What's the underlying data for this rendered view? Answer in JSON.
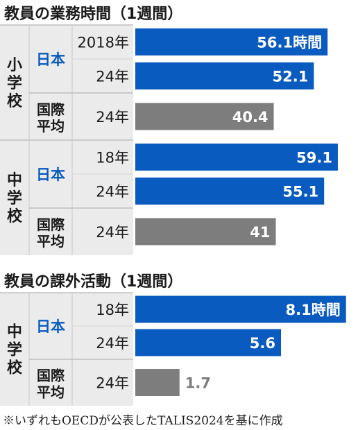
{
  "chart_data": [
    {
      "type": "bar",
      "title": "教員の業務時間（1週間）",
      "unit_label": "時間",
      "groups": [
        {
          "school": "小学校",
          "rows": [
            {
              "country": "日本",
              "year": "2018年",
              "value": 56.1,
              "label": "56.1時間",
              "color": "#0a5bbf"
            },
            {
              "country": "",
              "year": "24年",
              "value": 52.1,
              "label": "52.1",
              "color": "#0a5bbf"
            },
            {
              "country": "国際平均",
              "year": "24年",
              "value": 40.4,
              "label": "40.4",
              "color": "#7d7d7d"
            }
          ]
        },
        {
          "school": "中学校",
          "rows": [
            {
              "country": "日本",
              "year": "18年",
              "value": 59.1,
              "label": "59.1",
              "color": "#0a5bbf"
            },
            {
              "country": "",
              "year": "24年",
              "value": 55.1,
              "label": "55.1",
              "color": "#0a5bbf"
            },
            {
              "country": "国際平均",
              "year": "24年",
              "value": 41,
              "label": "41",
              "color": "#7d7d7d"
            }
          ]
        }
      ]
    },
    {
      "type": "bar",
      "title": "教員の課外活動（1週間）",
      "unit_label": "時間",
      "groups": [
        {
          "school": "中学校",
          "rows": [
            {
              "country": "日本",
              "year": "18年",
              "value": 8.1,
              "label": "8.1時間",
              "color": "#0a5bbf"
            },
            {
              "country": "",
              "year": "24年",
              "value": 5.6,
              "label": "5.6",
              "color": "#0a5bbf"
            },
            {
              "country": "国際平均",
              "year": "24年",
              "value": 1.7,
              "label": "1.7",
              "color": "#7d7d7d"
            }
          ]
        }
      ]
    }
  ],
  "footnote": "※いずれもOECDが公表したTALIS2024を基に作成",
  "colors": {
    "japan": "#0a5bbf",
    "intl": "#7d7d7d",
    "panel": "#ebebeb",
    "japan_label": "#0a5bbf"
  }
}
